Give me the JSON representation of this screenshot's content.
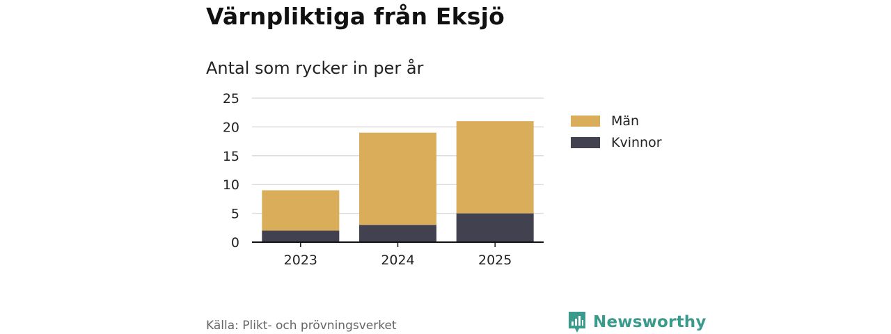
{
  "title": "Värnpliktiga från Eksjö",
  "subtitle": "Antal som rycker in per år",
  "source": "Källa: Plikt- och prövningsverket",
  "brand": "Newsworthy",
  "icons": {
    "brand": "newsworthy-logo-icon"
  },
  "colors": {
    "man": "#d9ad5a",
    "kvinnor": "#424150",
    "brand": "#3a9a8c",
    "grid": "#dddddd",
    "axis": "#111111"
  },
  "chart_data": {
    "type": "bar",
    "stacked": true,
    "categories": [
      "2023",
      "2024",
      "2025"
    ],
    "series": [
      {
        "name": "Kvinnor",
        "values": [
          2,
          3,
          5
        ]
      },
      {
        "name": "Män",
        "values": [
          7,
          16,
          16
        ]
      }
    ],
    "title": "Värnpliktiga från Eksjö",
    "subtitle": "Antal som rycker in per år",
    "xlabel": "",
    "ylabel": "",
    "ylim": [
      0,
      25
    ],
    "yticks": [
      "0",
      "5",
      "10",
      "15",
      "20",
      "25"
    ],
    "grid": true,
    "legend_position": "right",
    "legend": [
      "Män",
      "Kvinnor"
    ]
  }
}
